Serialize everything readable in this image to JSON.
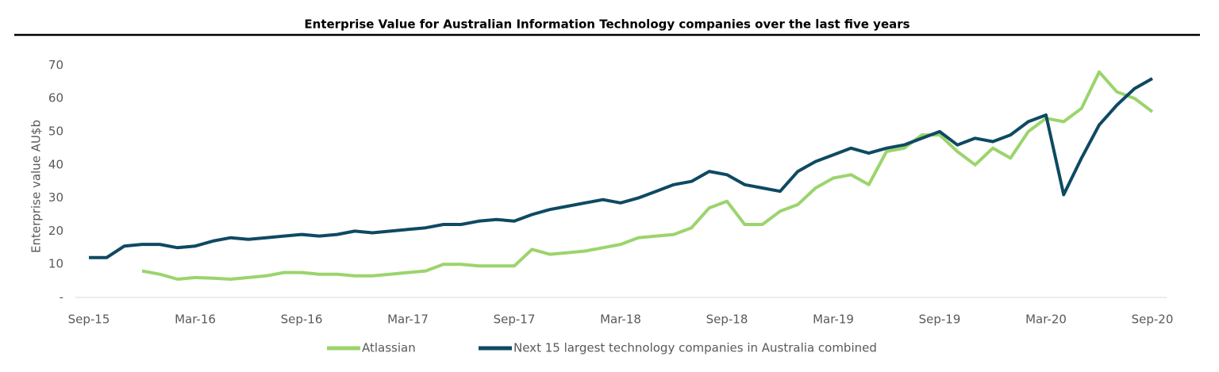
{
  "chart_data": {
    "type": "line",
    "title": "Enterprise Value for Australian Information Technology companies over the last five years",
    "y_label": "Enterprise value AU$b",
    "categories": [
      "Sep-15",
      null,
      null,
      null,
      null,
      null,
      "Mar-16",
      null,
      null,
      null,
      null,
      null,
      "Sep-16",
      null,
      null,
      null,
      null,
      null,
      "Mar-17",
      null,
      null,
      null,
      null,
      null,
      "Sep-17",
      null,
      null,
      null,
      null,
      null,
      "Mar-18",
      null,
      null,
      null,
      null,
      null,
      "Sep-18",
      null,
      null,
      null,
      null,
      null,
      "Mar-19",
      null,
      null,
      null,
      null,
      null,
      "Sep-19",
      null,
      null,
      null,
      null,
      null,
      "Mar-20",
      null,
      null,
      null,
      null,
      null,
      "Sep-20"
    ],
    "series": [
      {
        "name": "Atlassian",
        "color": "#9bd46c",
        "values": [
          null,
          null,
          null,
          8,
          7,
          5.5,
          6,
          5.8,
          5.5,
          6,
          6.5,
          7.5,
          7.5,
          7,
          7,
          6.5,
          6.5,
          7,
          7.5,
          8,
          10,
          10,
          9.5,
          9.5,
          9.5,
          14.5,
          13,
          13.5,
          14,
          15,
          16,
          18,
          18.5,
          19,
          21,
          27,
          29,
          22,
          22,
          26,
          28,
          33,
          36,
          37,
          34,
          44,
          45,
          49,
          49,
          44,
          40,
          45,
          42,
          50,
          54,
          53,
          57,
          68,
          62,
          60,
          56
        ]
      },
      {
        "name": "Next 15 largest technology companies in Australia combined",
        "color": "#0e4a62",
        "values": [
          12,
          12,
          15.5,
          16,
          16,
          15,
          15.5,
          17,
          18,
          17.5,
          18,
          18.5,
          19,
          18.5,
          19,
          20,
          19.5,
          20,
          20.5,
          21,
          22,
          22,
          23,
          23.5,
          23,
          25,
          26.5,
          27.5,
          28.5,
          29.5,
          28.5,
          30,
          32,
          34,
          35,
          38,
          37,
          34,
          33,
          32,
          38,
          41,
          43,
          45,
          43.5,
          45,
          46,
          48,
          50,
          46,
          48,
          47,
          49,
          53,
          55,
          31,
          42,
          52,
          58,
          63,
          66
        ]
      }
    ],
    "ylim": [
      0,
      80
    ],
    "yticks": [
      {
        "value": 0,
        "label": "-"
      },
      10,
      20,
      30,
      40,
      50,
      60,
      70
    ],
    "legend": "bottom"
  }
}
